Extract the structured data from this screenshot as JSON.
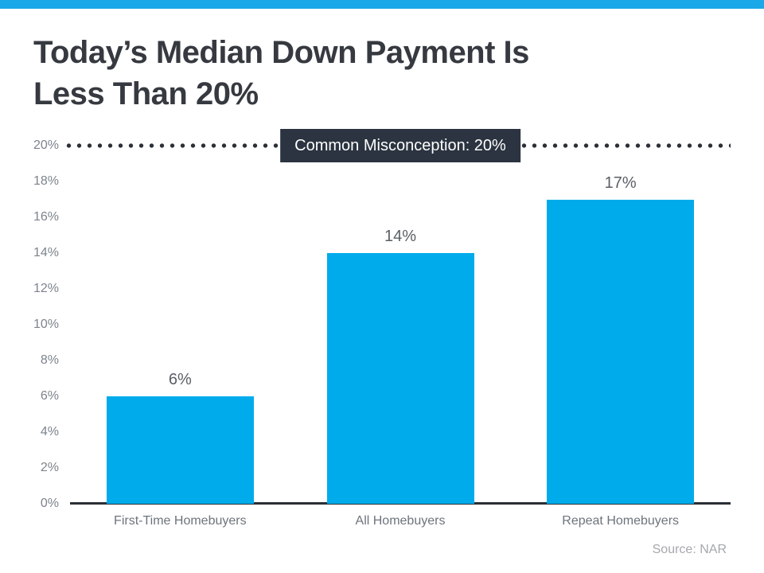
{
  "page": {
    "title": "Today’s Median Down Payment Is\nLess Than 20%",
    "source": "Source: NAR",
    "accent_color": "#1ba8e9"
  },
  "chart_data": {
    "type": "bar",
    "title": "Today’s Median Down Payment Is Less Than 20%",
    "categories": [
      "First-Time Homebuyers",
      "All Homebuyers",
      "Repeat Homebuyers"
    ],
    "values": [
      6,
      14,
      17
    ],
    "value_labels": [
      "6%",
      "14%",
      "17%"
    ],
    "xlabel": "",
    "ylabel": "",
    "ylim": [
      0,
      20
    ],
    "yticks": [
      0,
      2,
      4,
      6,
      8,
      10,
      12,
      14,
      16,
      18,
      20
    ],
    "ytick_labels": [
      "0%",
      "2%",
      "4%",
      "6%",
      "8%",
      "10%",
      "12%",
      "14%",
      "16%",
      "18%",
      "20%"
    ],
    "grid": false,
    "legend": false,
    "bar_color": "#00abeb",
    "reference_line": {
      "y": 20,
      "style": "dotted",
      "color": "#2b2f36"
    },
    "annotation": {
      "text": "Common Misconception: 20%",
      "at_y": 20,
      "bg": "#2b3440",
      "fg": "#ffffff"
    }
  }
}
